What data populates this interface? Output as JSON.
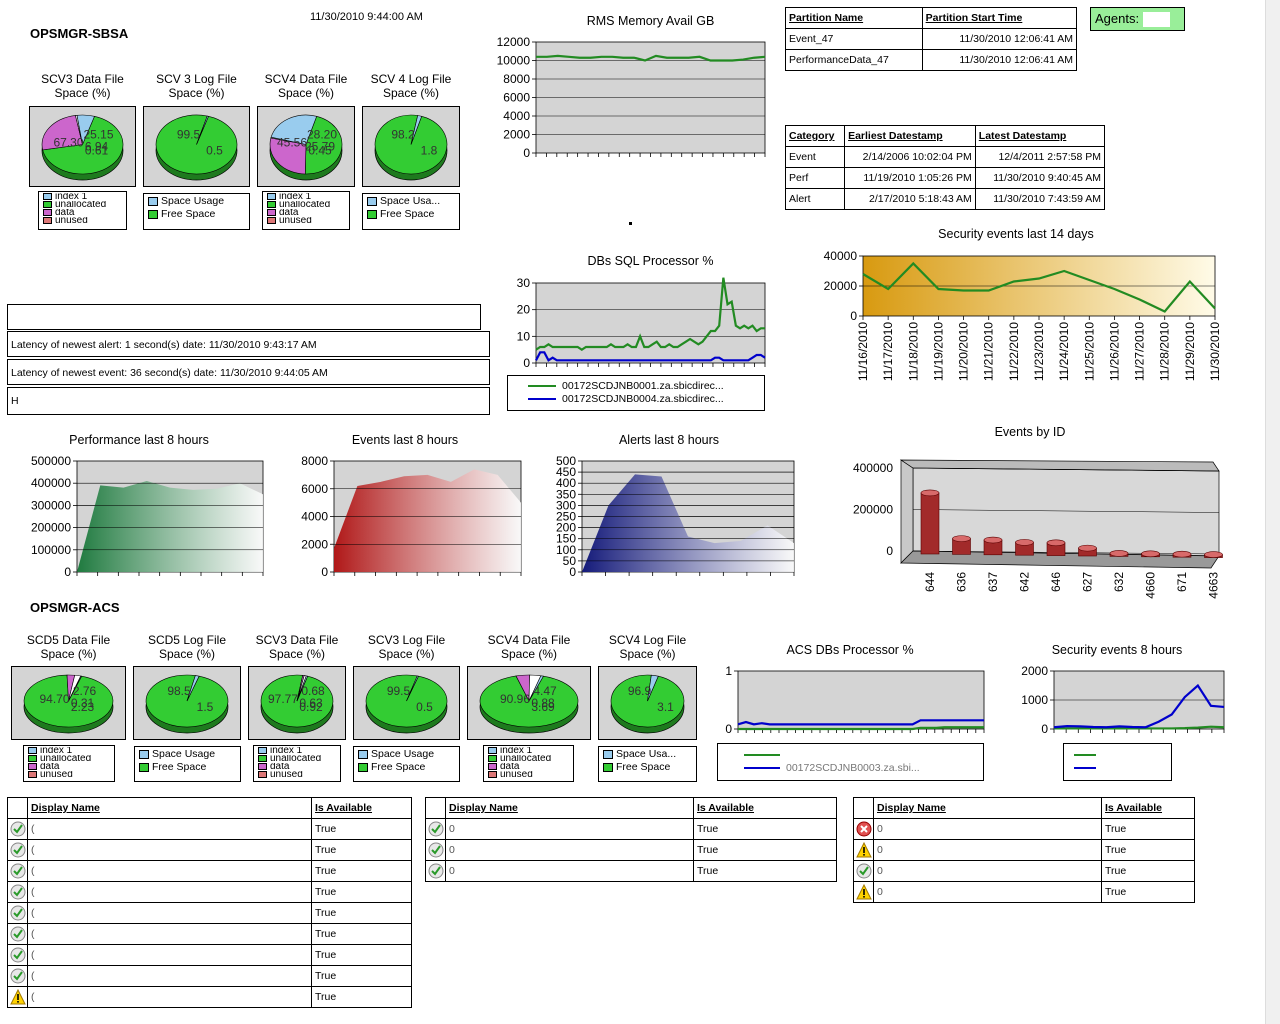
{
  "sections": {
    "sbsa": "OPSMGR-SBSA",
    "acs": "OPSMGR-ACS"
  },
  "timestamp": "11/30/2010 9:44:00 AM",
  "agents_label": "Agents:",
  "sbsa_pies": [
    {
      "title": [
        "SCV3 Data File",
        "Space (%)"
      ],
      "labels": [
        "67.30",
        "25.15",
        "0.61",
        "6.94"
      ],
      "legend": [
        "index 1",
        "unallocated",
        "data",
        "unused"
      ],
      "slices": [
        0.673,
        0.2515,
        0.0061,
        0.0694
      ],
      "colors": [
        "#33cc33",
        "#cc66cc",
        "#ffffff",
        "#99ccee"
      ]
    },
    {
      "title": [
        "SCV 3 Log File",
        "Space (%)"
      ],
      "labels": [
        "99.5",
        "0.5"
      ],
      "legend": [
        "Space Usage",
        "Free Space"
      ],
      "slices": [
        0.995,
        0.005
      ],
      "colors": [
        "#33cc33",
        "#99ccee"
      ]
    },
    {
      "title": [
        "SCV4 Data File",
        "Space (%)"
      ],
      "labels": [
        "45.56",
        "28.20",
        "0.45",
        "25.79"
      ],
      "legend": [
        "index 1",
        "unallocated",
        "data",
        "unused"
      ],
      "slices": [
        0.4556,
        0.282,
        0.0045,
        0.2579
      ],
      "colors": [
        "#33cc33",
        "#cc66cc",
        "#ffffff",
        "#99ccee"
      ]
    },
    {
      "title": [
        "SCV 4 Log File",
        "Space (%)"
      ],
      "labels": [
        "98.2",
        "1.8"
      ],
      "legend": [
        "Space Usa...",
        "Free Space"
      ],
      "slices": [
        0.982,
        0.018
      ],
      "colors": [
        "#33cc33",
        "#99ccee"
      ]
    }
  ],
  "acs_pies": [
    {
      "title": [
        "SCD5 Data File",
        "Space (%)"
      ],
      "labels": [
        "94.70",
        "2.76",
        "2.23",
        "0.31"
      ],
      "legend": [
        "index 1",
        "unallocated",
        "data",
        "unused"
      ],
      "slices": [
        0.947,
        0.0276,
        0.0223,
        0.0031
      ],
      "colors": [
        "#33cc33",
        "#cc66cc",
        "#ffffff",
        "#99ccee"
      ]
    },
    {
      "title": [
        "SCD5 Log File",
        "Space (%)"
      ],
      "labels": [
        "98.5",
        "1.5"
      ],
      "legend": [
        "Space Usage",
        "Free Space"
      ],
      "slices": [
        0.985,
        0.015
      ],
      "colors": [
        "#33cc33",
        "#99ccee"
      ]
    },
    {
      "title": [
        "SCV3 Data File",
        "Space (%)"
      ],
      "labels": [
        "97.77",
        "0.68",
        "0.92",
        "0.63"
      ],
      "legend": [
        "index 1",
        "unallocated",
        "data",
        "unused"
      ],
      "slices": [
        0.9777,
        0.0068,
        0.0092,
        0.0063
      ],
      "colors": [
        "#33cc33",
        "#cc66cc",
        "#ffffff",
        "#99ccee"
      ]
    },
    {
      "title": [
        "SCV3 Log File",
        "Space (%)"
      ],
      "labels": [
        "99.5",
        "0.5"
      ],
      "legend": [
        "Space Usage",
        "Free Space"
      ],
      "slices": [
        0.995,
        0.005
      ],
      "colors": [
        "#33cc33",
        "#99ccee"
      ]
    },
    {
      "title": [
        "SCV4 Data File",
        "Space (%)"
      ],
      "labels": [
        "90.96",
        "4.47",
        "3.69",
        "0.88"
      ],
      "legend": [
        "index 1",
        "unallocated",
        "data",
        "unused"
      ],
      "slices": [
        0.9096,
        0.0447,
        0.0369,
        0.0088
      ],
      "colors": [
        "#33cc33",
        "#cc66cc",
        "#ffffff",
        "#99ccee"
      ]
    },
    {
      "title": [
        "SCV4 Log File",
        "Space (%)"
      ],
      "labels": [
        "96.9",
        "3.1"
      ],
      "legend": [
        "Space Usa...",
        "Free Space"
      ],
      "slices": [
        0.969,
        0.031
      ],
      "colors": [
        "#33cc33",
        "#99ccee"
      ]
    }
  ],
  "legend_colors": [
    "#99ccee",
    "#33cc33",
    "#cc66cc",
    "#dd7777"
  ],
  "partition_table": {
    "headers": [
      "Partition Name",
      "Partition Start Time"
    ],
    "rows": [
      [
        "Event_47",
        "11/30/2010 12:06:41 AM"
      ],
      [
        "PerformanceData_47",
        "11/30/2010 12:06:41 AM"
      ]
    ]
  },
  "category_table": {
    "headers": [
      "Category",
      "Earliest Datestamp",
      "Latest Datestamp"
    ],
    "rows": [
      [
        "Event",
        "2/14/2006 10:02:04 PM",
        "12/4/2011 2:57:58 PM"
      ],
      [
        "Perf",
        "11/19/2010 1:05:26 PM",
        "11/30/2010 9:40:45 AM"
      ],
      [
        "Alert",
        "2/17/2010 5:18:43 AM",
        "11/30/2010 7:43:59 AM"
      ]
    ]
  },
  "latency": {
    "alert": "Latency of newest alert: 1 second(s) date: 11/30/2010 9:43:17 AM",
    "event": "Latency of newest event: 36 second(s) date: 11/30/2010 9:44:05 AM",
    "blank": "H"
  },
  "chart_data": [
    {
      "id": "rms",
      "type": "line",
      "title": "RMS Memory Avail GB",
      "ylim": [
        0,
        12000
      ],
      "yticks": [
        0,
        2000,
        4000,
        6000,
        8000,
        10000,
        12000
      ],
      "series": [
        {
          "color": "#228b22",
          "values": [
            10400,
            10400,
            10500,
            10400,
            10300,
            10300,
            10400,
            10400,
            10300,
            10300,
            10000,
            10500,
            10300,
            10300,
            10300,
            10400,
            10000,
            10000,
            10000,
            10100,
            10300,
            10400
          ]
        }
      ]
    },
    {
      "id": "sqlproc",
      "type": "line",
      "title": "DBs SQL Processor %",
      "ylim": [
        0,
        30
      ],
      "yticks": [
        0,
        10,
        20,
        30
      ],
      "series": [
        {
          "name": "00172SCDJNB0001.za.sbicdirec...",
          "color": "#228b22",
          "values": [
            5,
            6,
            6,
            7,
            6,
            6,
            6,
            6,
            6,
            6,
            6,
            5,
            6,
            6,
            6,
            6,
            6,
            6,
            7,
            6,
            6,
            6,
            7,
            6,
            6,
            10,
            6,
            6,
            7,
            8,
            6,
            6,
            7,
            6,
            6,
            7,
            8,
            9,
            8,
            7,
            8,
            10,
            12,
            12,
            14,
            32,
            22,
            23,
            14,
            13,
            14,
            13,
            14,
            12,
            13,
            13
          ]
        },
        {
          "name": "00172SCDJNB0004.za.sbicdirec...",
          "color": "#0000cc",
          "values": [
            1,
            4,
            4,
            1,
            2,
            1,
            1,
            1,
            1,
            1,
            1,
            1,
            1,
            1,
            1,
            1,
            1,
            1,
            1,
            1,
            1,
            1,
            1,
            1,
            1,
            1,
            1,
            1,
            1,
            1,
            1,
            1,
            1,
            1,
            1,
            1,
            1,
            1,
            1,
            1,
            1,
            1,
            1,
            2,
            2,
            1,
            1,
            1,
            1,
            1,
            1,
            1,
            2,
            3,
            3,
            2
          ]
        }
      ]
    },
    {
      "id": "sec14",
      "type": "line",
      "title": "Security events last 14 days",
      "ylim": [
        0,
        40000
      ],
      "yticks": [
        0,
        20000,
        40000
      ],
      "categories": [
        "11/16/2010",
        "11/17/2010",
        "11/18/2010",
        "11/19/2010",
        "11/20/2010",
        "11/21/2010",
        "11/22/2010",
        "11/23/2010",
        "11/24/2010",
        "11/25/2010",
        "11/26/2010",
        "11/27/2010",
        "11/28/2010",
        "11/29/2010",
        "11/30/2010"
      ],
      "series": [
        {
          "color": "#228b22",
          "values": [
            28000,
            18000,
            35000,
            18000,
            17000,
            17000,
            23000,
            25000,
            30000,
            24000,
            18000,
            11000,
            3000,
            23000,
            5000
          ]
        }
      ]
    },
    {
      "id": "perf8",
      "type": "area",
      "title": "Performance last 8 hours",
      "ylim": [
        0,
        500000
      ],
      "yticks": [
        0,
        100000,
        200000,
        300000,
        400000,
        500000
      ],
      "series": [
        {
          "color": "#1f7a3f",
          "values": [
            0,
            390000,
            380000,
            410000,
            380000,
            370000,
            375000,
            400000,
            350000
          ]
        }
      ]
    },
    {
      "id": "events8",
      "type": "area",
      "title": "Events last 8 hours",
      "ylim": [
        0,
        8000
      ],
      "yticks": [
        0,
        2000,
        4000,
        6000,
        8000
      ],
      "series": [
        {
          "color": "#b01818",
          "values": [
            1700,
            6200,
            6500,
            6900,
            7000,
            6500,
            7400,
            7000,
            5000
          ]
        }
      ]
    },
    {
      "id": "alerts8",
      "type": "area",
      "title": "Alerts last 8 hours",
      "ylim": [
        0,
        500
      ],
      "yticks": [
        0,
        50,
        100,
        150,
        200,
        250,
        300,
        350,
        400,
        450,
        500
      ],
      "series": [
        {
          "color": "#141a7a",
          "values": [
            0,
            300,
            440,
            430,
            160,
            130,
            140,
            210,
            130
          ]
        }
      ]
    },
    {
      "id": "evid",
      "type": "bar",
      "title": "Events by ID",
      "ylim": [
        0,
        400000
      ],
      "yticks": [
        0,
        200000,
        400000
      ],
      "categories": [
        "644",
        "636",
        "637",
        "642",
        "646",
        "627",
        "632",
        "4660",
        "671",
        "4663"
      ],
      "values": [
        310000,
        80000,
        75000,
        65000,
        65000,
        40000,
        15000,
        12000,
        8000,
        7000
      ]
    },
    {
      "id": "acsproc",
      "type": "line",
      "title": "ACS DBs Processor %",
      "ylim": [
        0,
        1
      ],
      "yticks": [
        0,
        1
      ],
      "series": [
        {
          "color": "#228b22",
          "values": [
            0,
            0,
            0,
            0,
            0,
            0,
            0,
            0,
            0,
            0,
            0,
            0,
            0,
            0,
            0,
            0,
            0,
            0,
            0,
            0,
            0,
            0,
            0,
            0.02,
            0.02,
            0.02,
            0.03,
            0.03,
            0.03,
            0.03,
            0.03,
            0.03
          ]
        },
        {
          "name": "00172SCDJNB0003.za.sbi...",
          "color": "#0000cc",
          "values": [
            0.08,
            0.12,
            0.08,
            0.1,
            0.08,
            0.08,
            0.08,
            0.08,
            0.08,
            0.08,
            0.08,
            0.08,
            0.08,
            0.08,
            0.08,
            0.08,
            0.08,
            0.08,
            0.08,
            0.08,
            0.08,
            0.08,
            0.08,
            0.15,
            0.15,
            0.15,
            0.15,
            0.15,
            0.15,
            0.15,
            0.15,
            0.15
          ]
        }
      ]
    },
    {
      "id": "sec8",
      "type": "line",
      "title": "Security events 8 hours",
      "ylim": [
        0,
        2000
      ],
      "yticks": [
        0,
        1000,
        2000
      ],
      "series": [
        {
          "color": "#228b22",
          "values": [
            20,
            20,
            20,
            20,
            20,
            20,
            20,
            20,
            20,
            20,
            30,
            50,
            80,
            60
          ]
        },
        {
          "color": "#0000cc",
          "values": [
            60,
            100,
            90,
            70,
            60,
            90,
            70,
            60,
            250,
            500,
            1100,
            1500,
            800,
            760
          ]
        }
      ]
    }
  ],
  "avail_tables": [
    {
      "headers": [
        "Display Name",
        "Is Available"
      ],
      "rows": [
        {
          "status": "ok",
          "name": "(",
          "avail": "True"
        },
        {
          "status": "ok",
          "name": "(",
          "avail": "True"
        },
        {
          "status": "ok",
          "name": "(",
          "avail": "True"
        },
        {
          "status": "ok",
          "name": "(",
          "avail": "True"
        },
        {
          "status": "ok",
          "name": "(",
          "avail": "True"
        },
        {
          "status": "ok",
          "name": "(",
          "avail": "True"
        },
        {
          "status": "ok",
          "name": "(",
          "avail": "True"
        },
        {
          "status": "ok",
          "name": "(",
          "avail": "True"
        },
        {
          "status": "warn",
          "name": "(",
          "avail": "True"
        }
      ]
    },
    {
      "headers": [
        "Display Name",
        "Is Available"
      ],
      "rows": [
        {
          "status": "ok",
          "name": "0",
          "avail": "True"
        },
        {
          "status": "ok",
          "name": "0",
          "avail": "True"
        },
        {
          "status": "ok",
          "name": "0",
          "avail": "True"
        }
      ]
    },
    {
      "headers": [
        "Display Name",
        "Is Available"
      ],
      "rows": [
        {
          "status": "error",
          "name": "0",
          "avail": "True"
        },
        {
          "status": "warn",
          "name": "0",
          "avail": "True"
        },
        {
          "status": "ok",
          "name": "0",
          "avail": "True"
        },
        {
          "status": "warn",
          "name": "0",
          "avail": "True"
        }
      ]
    }
  ]
}
